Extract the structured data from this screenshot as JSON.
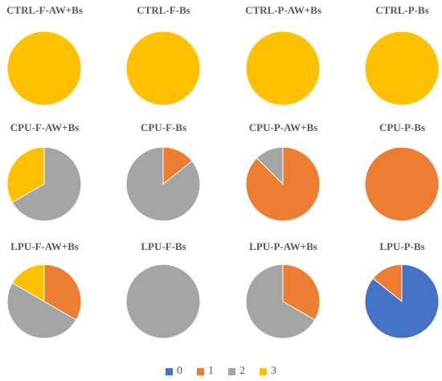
{
  "chart_data": {
    "type": "pie",
    "categories": [
      "0",
      "1",
      "2",
      "3"
    ],
    "colors": {
      "0": "#4472C4",
      "1": "#ED7D31",
      "2": "#A5A5A5",
      "3": "#FFC000"
    },
    "legend_position": "bottom",
    "pies": [
      {
        "title": "CTRL-F-AW+Bs",
        "values": [
          0,
          0,
          0,
          1
        ]
      },
      {
        "title": "CTRL-F-Bs",
        "values": [
          0,
          0,
          0,
          1
        ]
      },
      {
        "title": "CTRL-P-AW+Bs",
        "values": [
          0,
          0,
          0,
          1
        ]
      },
      {
        "title": "CTRL-P-Bs",
        "values": [
          0,
          0,
          0,
          1
        ]
      },
      {
        "title": "CPU-F-AW+Bs",
        "values": [
          0,
          0,
          2,
          1
        ]
      },
      {
        "title": "CPU-F-Bs",
        "values": [
          0,
          1,
          6,
          0
        ]
      },
      {
        "title": "CPU-P-AW+Bs",
        "values": [
          0,
          7,
          1,
          0
        ]
      },
      {
        "title": "CPU-P-Bs",
        "values": [
          0,
          1,
          0,
          0
        ]
      },
      {
        "title": "LPU-F-AW+Bs",
        "values": [
          0,
          2,
          3,
          1
        ]
      },
      {
        "title": "LPU-F-Bs",
        "values": [
          0,
          0,
          1,
          0
        ]
      },
      {
        "title": "LPU-P-AW+Bs",
        "values": [
          0,
          1,
          2,
          0
        ]
      },
      {
        "title": "LPU-P-Bs",
        "values": [
          6,
          1,
          0,
          0
        ]
      }
    ]
  }
}
